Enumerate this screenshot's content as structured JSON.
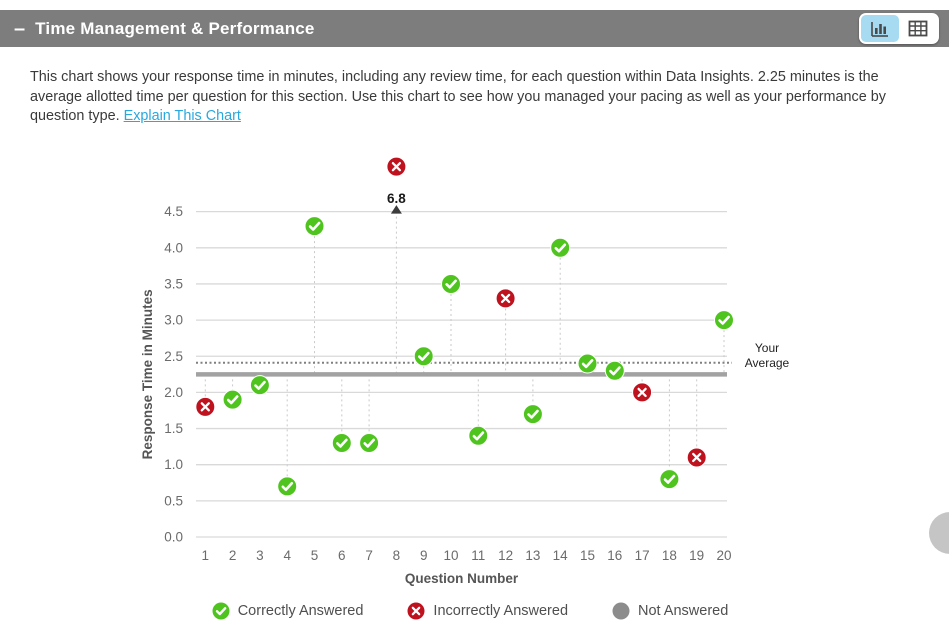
{
  "header": {
    "collapse_icon": "–",
    "title": "Time Management & Performance"
  },
  "description": {
    "text": "This chart shows your response time in minutes, including any review time, for each question within Data Insights. 2.25 minutes is the average allotted time per question for this section. Use this chart to see how you managed your pacing as well as your performance by question type.",
    "link_text": "Explain This Chart"
  },
  "chart_data": {
    "type": "scatter",
    "xlabel": "Question Number",
    "ylabel": "Response Time in Minutes",
    "x": [
      1,
      2,
      3,
      4,
      5,
      6,
      7,
      8,
      9,
      10,
      11,
      12,
      13,
      14,
      15,
      16,
      17,
      18,
      19,
      20
    ],
    "values": [
      1.8,
      1.9,
      2.1,
      0.7,
      4.3,
      1.3,
      1.3,
      6.8,
      2.5,
      3.5,
      1.4,
      3.3,
      1.7,
      4.0,
      2.4,
      2.3,
      2.0,
      0.8,
      1.1,
      3.0
    ],
    "status": [
      "incorrect",
      "correct",
      "correct",
      "correct",
      "correct",
      "correct",
      "correct",
      "incorrect",
      "correct",
      "correct",
      "correct",
      "incorrect",
      "correct",
      "correct",
      "correct",
      "correct",
      "incorrect",
      "correct",
      "incorrect",
      "correct"
    ],
    "ylim": [
      0,
      4.5
    ],
    "ytick_step": 0.5,
    "grid": "horizontal",
    "reference_lines": {
      "allotted_time": {
        "value": 2.25,
        "style": "solid-thick"
      },
      "your_average": {
        "value": 2.41,
        "style": "dotted",
        "label": "Your Average"
      }
    },
    "clipped_point": {
      "question": 8,
      "value": 6.8,
      "label": "6.8"
    },
    "legend": [
      {
        "label": "Correctly Answered",
        "status": "correct",
        "color": "#4fc41f"
      },
      {
        "label": "Incorrectly Answered",
        "status": "incorrect",
        "color": "#bf121f"
      },
      {
        "label": "Not Answered",
        "status": "not_answered",
        "color": "#8c8c8c"
      }
    ]
  },
  "colors": {
    "header_bg": "#7d7d7d",
    "accent_link": "#29a8df",
    "selected_toggle_bg": "#a6dbf2",
    "gridline": "#d9d9d9",
    "allotted_line": "#a2a2a2",
    "average_dotted": "#7f7f7f",
    "axis_text": "#6b6b6b",
    "axis_title": "#555555"
  }
}
